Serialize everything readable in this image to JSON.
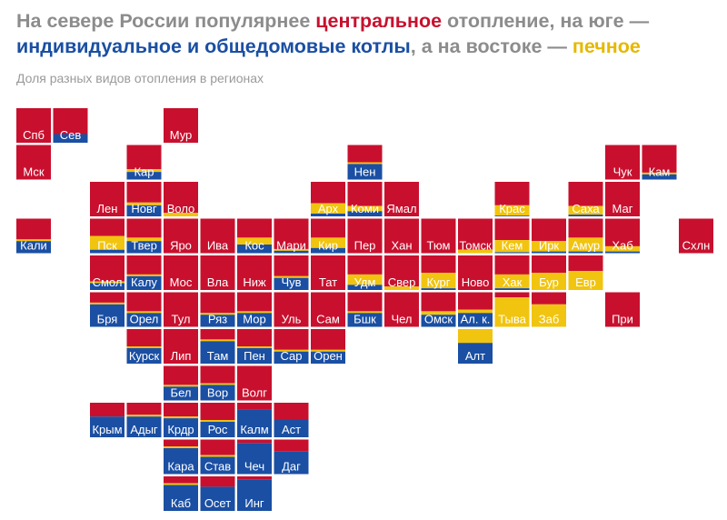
{
  "headline": {
    "part1": "На севере России популярнее ",
    "central": "центральное",
    "part2": " отопление, на юге — ",
    "individual": "индивидуальное и общедомовые котлы",
    "part3": ", а на востоке — ",
    "stove": "печное"
  },
  "chart_data": {
    "type": "tile-map",
    "subtitle": "Доля разных видов отопления в регионах",
    "series": [
      {
        "key": "central",
        "color": "#c8102e"
      },
      {
        "key": "stove",
        "color": "#f1c40f"
      },
      {
        "key": "individual",
        "color": "#1a4fa3"
      }
    ],
    "regions": [
      {
        "label": "Спб",
        "row": 0,
        "col": 0,
        "central": 1.0,
        "stove": 0.0,
        "individual": 0.0
      },
      {
        "label": "Сев",
        "row": 0,
        "col": 1,
        "central": 0.75,
        "stove": 0.0,
        "individual": 0.25
      },
      {
        "label": "Мур",
        "row": 0,
        "col": 4,
        "central": 1.0,
        "stove": 0.0,
        "individual": 0.0
      },
      {
        "label": "Мск",
        "row": 1,
        "col": 0,
        "central": 1.0,
        "stove": 0.0,
        "individual": 0.0
      },
      {
        "label": "Кар",
        "row": 1,
        "col": 3,
        "central": 0.7,
        "stove": 0.08,
        "individual": 0.22
      },
      {
        "label": "Нен",
        "row": 1,
        "col": 9,
        "central": 0.5,
        "stove": 0.05,
        "individual": 0.45
      },
      {
        "label": "Чук",
        "row": 1,
        "col": 16,
        "central": 1.0,
        "stove": 0.0,
        "individual": 0.0
      },
      {
        "label": "Кам",
        "row": 1,
        "col": 17,
        "central": 0.8,
        "stove": 0.05,
        "individual": 0.15
      },
      {
        "label": "Лен",
        "row": 2,
        "col": 2,
        "central": 1.0,
        "stove": 0.0,
        "individual": 0.0
      },
      {
        "label": "Новг",
        "row": 2,
        "col": 3,
        "central": 0.6,
        "stove": 0.08,
        "individual": 0.32
      },
      {
        "label": "Воло",
        "row": 2,
        "col": 4,
        "central": 0.9,
        "stove": 0.1,
        "individual": 0.0
      },
      {
        "label": "Арх",
        "row": 2,
        "col": 8,
        "central": 0.62,
        "stove": 0.3,
        "individual": 0.08
      },
      {
        "label": "Коми",
        "row": 2,
        "col": 9,
        "central": 0.7,
        "stove": 0.15,
        "individual": 0.15
      },
      {
        "label": "Ямал",
        "row": 2,
        "col": 10,
        "central": 1.0,
        "stove": 0.0,
        "individual": 0.0
      },
      {
        "label": "Крас",
        "row": 2,
        "col": 13,
        "central": 0.68,
        "stove": 0.3,
        "individual": 0.02
      },
      {
        "label": "Саха",
        "row": 2,
        "col": 15,
        "central": 0.7,
        "stove": 0.25,
        "individual": 0.05
      },
      {
        "label": "Маг",
        "row": 2,
        "col": 16,
        "central": 1.0,
        "stove": 0.0,
        "individual": 0.0
      },
      {
        "label": "Кали",
        "row": 3,
        "col": 0,
        "central": 0.6,
        "stove": 0.05,
        "individual": 0.35
      },
      {
        "label": "Пск",
        "row": 3,
        "col": 2,
        "central": 0.5,
        "stove": 0.4,
        "individual": 0.1
      },
      {
        "label": "Твер",
        "row": 3,
        "col": 3,
        "central": 0.55,
        "stove": 0.1,
        "individual": 0.35
      },
      {
        "label": "Яро",
        "row": 3,
        "col": 4,
        "central": 1.0,
        "stove": 0.0,
        "individual": 0.0
      },
      {
        "label": "Ива",
        "row": 3,
        "col": 5,
        "central": 1.0,
        "stove": 0.0,
        "individual": 0.0
      },
      {
        "label": "Кос",
        "row": 3,
        "col": 6,
        "central": 0.55,
        "stove": 0.2,
        "individual": 0.25
      },
      {
        "label": "Мари",
        "row": 3,
        "col": 7,
        "central": 0.88,
        "stove": 0.05,
        "individual": 0.07
      },
      {
        "label": "Кир",
        "row": 3,
        "col": 8,
        "central": 0.55,
        "stove": 0.3,
        "individual": 0.15
      },
      {
        "label": "Пер",
        "row": 3,
        "col": 9,
        "central": 1.0,
        "stove": 0.0,
        "individual": 0.0
      },
      {
        "label": "Хан",
        "row": 3,
        "col": 10,
        "central": 1.0,
        "stove": 0.0,
        "individual": 0.0
      },
      {
        "label": "Тюм",
        "row": 3,
        "col": 11,
        "central": 1.0,
        "stove": 0.0,
        "individual": 0.0
      },
      {
        "label": "Томск",
        "row": 3,
        "col": 12,
        "central": 0.9,
        "stove": 0.1,
        "individual": 0.0
      },
      {
        "label": "Кем",
        "row": 3,
        "col": 13,
        "central": 0.62,
        "stove": 0.35,
        "individual": 0.03
      },
      {
        "label": "Ирк",
        "row": 3,
        "col": 14,
        "central": 0.65,
        "stove": 0.3,
        "individual": 0.05
      },
      {
        "label": "Амур",
        "row": 3,
        "col": 15,
        "central": 0.55,
        "stove": 0.4,
        "individual": 0.05
      },
      {
        "label": "Хаб",
        "row": 3,
        "col": 16,
        "central": 0.8,
        "stove": 0.15,
        "individual": 0.05
      },
      {
        "label": "Схлн",
        "row": 3,
        "col": 18,
        "central": 1.0,
        "stove": 0.0,
        "individual": 0.0
      },
      {
        "label": "Смол",
        "row": 4,
        "col": 2,
        "central": 0.75,
        "stove": 0.05,
        "individual": 0.2
      },
      {
        "label": "Калу",
        "row": 4,
        "col": 3,
        "central": 0.55,
        "stove": 0.05,
        "individual": 0.4
      },
      {
        "label": "Мос",
        "row": 4,
        "col": 4,
        "central": 1.0,
        "stove": 0.0,
        "individual": 0.0
      },
      {
        "label": "Вла",
        "row": 4,
        "col": 5,
        "central": 1.0,
        "stove": 0.0,
        "individual": 0.0
      },
      {
        "label": "Ниж",
        "row": 4,
        "col": 6,
        "central": 1.0,
        "stove": 0.0,
        "individual": 0.0
      },
      {
        "label": "Чув",
        "row": 4,
        "col": 7,
        "central": 0.6,
        "stove": 0.05,
        "individual": 0.35
      },
      {
        "label": "Тат",
        "row": 4,
        "col": 8,
        "central": 1.0,
        "stove": 0.0,
        "individual": 0.0
      },
      {
        "label": "Удм",
        "row": 4,
        "col": 9,
        "central": 0.55,
        "stove": 0.3,
        "individual": 0.15
      },
      {
        "label": "Свер",
        "row": 4,
        "col": 10,
        "central": 0.9,
        "stove": 0.1,
        "individual": 0.0
      },
      {
        "label": "Кург",
        "row": 4,
        "col": 11,
        "central": 0.5,
        "stove": 0.45,
        "individual": 0.05
      },
      {
        "label": "Ново",
        "row": 4,
        "col": 12,
        "central": 1.0,
        "stove": 0.0,
        "individual": 0.0
      },
      {
        "label": "Хак",
        "row": 4,
        "col": 13,
        "central": 0.55,
        "stove": 0.4,
        "individual": 0.05
      },
      {
        "label": "Бур",
        "row": 4,
        "col": 14,
        "central": 0.5,
        "stove": 0.5,
        "individual": 0.0
      },
      {
        "label": "Евр",
        "row": 4,
        "col": 15,
        "central": 0.45,
        "stove": 0.55,
        "individual": 0.0
      },
      {
        "label": "Бря",
        "row": 5,
        "col": 2,
        "central": 0.3,
        "stove": 0.05,
        "individual": 0.65
      },
      {
        "label": "Орел",
        "row": 5,
        "col": 3,
        "central": 0.55,
        "stove": 0.05,
        "individual": 0.4
      },
      {
        "label": "Тул",
        "row": 5,
        "col": 4,
        "central": 1.0,
        "stove": 0.0,
        "individual": 0.0
      },
      {
        "label": "Ряз",
        "row": 5,
        "col": 5,
        "central": 0.6,
        "stove": 0.05,
        "individual": 0.35
      },
      {
        "label": "Мор",
        "row": 5,
        "col": 6,
        "central": 0.55,
        "stove": 0.05,
        "individual": 0.4
      },
      {
        "label": "Уль",
        "row": 5,
        "col": 7,
        "central": 1.0,
        "stove": 0.0,
        "individual": 0.0
      },
      {
        "label": "Сам",
        "row": 5,
        "col": 8,
        "central": 1.0,
        "stove": 0.0,
        "individual": 0.0
      },
      {
        "label": "Бшк",
        "row": 5,
        "col": 9,
        "central": 0.55,
        "stove": 0.05,
        "individual": 0.4
      },
      {
        "label": "Чел",
        "row": 5,
        "col": 10,
        "central": 1.0,
        "stove": 0.0,
        "individual": 0.0
      },
      {
        "label": "Омск",
        "row": 5,
        "col": 11,
        "central": 0.55,
        "stove": 0.1,
        "individual": 0.35
      },
      {
        "label": "Ал. к.",
        "row": 5,
        "col": 12,
        "central": 0.5,
        "stove": 0.1,
        "individual": 0.4
      },
      {
        "label": "Тыва",
        "row": 5,
        "col": 13,
        "central": 0.15,
        "stove": 0.85,
        "individual": 0.0
      },
      {
        "label": "Заб",
        "row": 5,
        "col": 14,
        "central": 0.35,
        "stove": 0.65,
        "individual": 0.0
      },
      {
        "label": "При",
        "row": 5,
        "col": 16,
        "central": 1.0,
        "stove": 0.0,
        "individual": 0.0
      },
      {
        "label": "Курск",
        "row": 6,
        "col": 3,
        "central": 0.5,
        "stove": 0.05,
        "individual": 0.45
      },
      {
        "label": "Лип",
        "row": 6,
        "col": 4,
        "central": 1.0,
        "stove": 0.0,
        "individual": 0.0
      },
      {
        "label": "Там",
        "row": 6,
        "col": 5,
        "central": 0.3,
        "stove": 0.05,
        "individual": 0.65
      },
      {
        "label": "Пен",
        "row": 6,
        "col": 6,
        "central": 0.5,
        "stove": 0.05,
        "individual": 0.45
      },
      {
        "label": "Сар",
        "row": 6,
        "col": 7,
        "central": 0.6,
        "stove": 0.05,
        "individual": 0.35
      },
      {
        "label": "Орен",
        "row": 6,
        "col": 8,
        "central": 0.6,
        "stove": 0.05,
        "individual": 0.35
      },
      {
        "label": "Алт",
        "row": 6,
        "col": 12,
        "central": 0.0,
        "stove": 0.4,
        "individual": 0.6
      },
      {
        "label": "Бел",
        "row": 7,
        "col": 4,
        "central": 0.55,
        "stove": 0.05,
        "individual": 0.4
      },
      {
        "label": "Вор",
        "row": 7,
        "col": 5,
        "central": 0.5,
        "stove": 0.05,
        "individual": 0.45
      },
      {
        "label": "Волг",
        "row": 7,
        "col": 6,
        "central": 1.0,
        "stove": 0.0,
        "individual": 0.0
      },
      {
        "label": "Крым",
        "row": 8,
        "col": 2,
        "central": 0.4,
        "stove": 0.0,
        "individual": 0.6
      },
      {
        "label": "Адыг",
        "row": 8,
        "col": 3,
        "central": 0.35,
        "stove": 0.05,
        "individual": 0.6
      },
      {
        "label": "Крдр",
        "row": 8,
        "col": 4,
        "central": 0.4,
        "stove": 0.05,
        "individual": 0.55
      },
      {
        "label": "Рос",
        "row": 8,
        "col": 5,
        "central": 0.5,
        "stove": 0.05,
        "individual": 0.45
      },
      {
        "label": "Калм",
        "row": 8,
        "col": 6,
        "central": 0.2,
        "stove": 0.0,
        "individual": 0.8
      },
      {
        "label": "Аст",
        "row": 8,
        "col": 7,
        "central": 0.5,
        "stove": 0.0,
        "individual": 0.5
      },
      {
        "label": "Кара",
        "row": 9,
        "col": 4,
        "central": 0.2,
        "stove": 0.05,
        "individual": 0.75
      },
      {
        "label": "Став",
        "row": 9,
        "col": 5,
        "central": 0.45,
        "stove": 0.05,
        "individual": 0.5
      },
      {
        "label": "Чеч",
        "row": 9,
        "col": 6,
        "central": 0.1,
        "stove": 0.0,
        "individual": 0.9
      },
      {
        "label": "Даг",
        "row": 9,
        "col": 7,
        "central": 0.35,
        "stove": 0.0,
        "individual": 0.65
      },
      {
        "label": "Каб",
        "row": 10,
        "col": 4,
        "central": 0.2,
        "stove": 0.05,
        "individual": 0.75
      },
      {
        "label": "Осет",
        "row": 10,
        "col": 5,
        "central": 0.3,
        "stove": 0.0,
        "individual": 0.7
      },
      {
        "label": "Инг",
        "row": 10,
        "col": 6,
        "central": 0.1,
        "stove": 0.0,
        "individual": 0.9
      }
    ]
  }
}
